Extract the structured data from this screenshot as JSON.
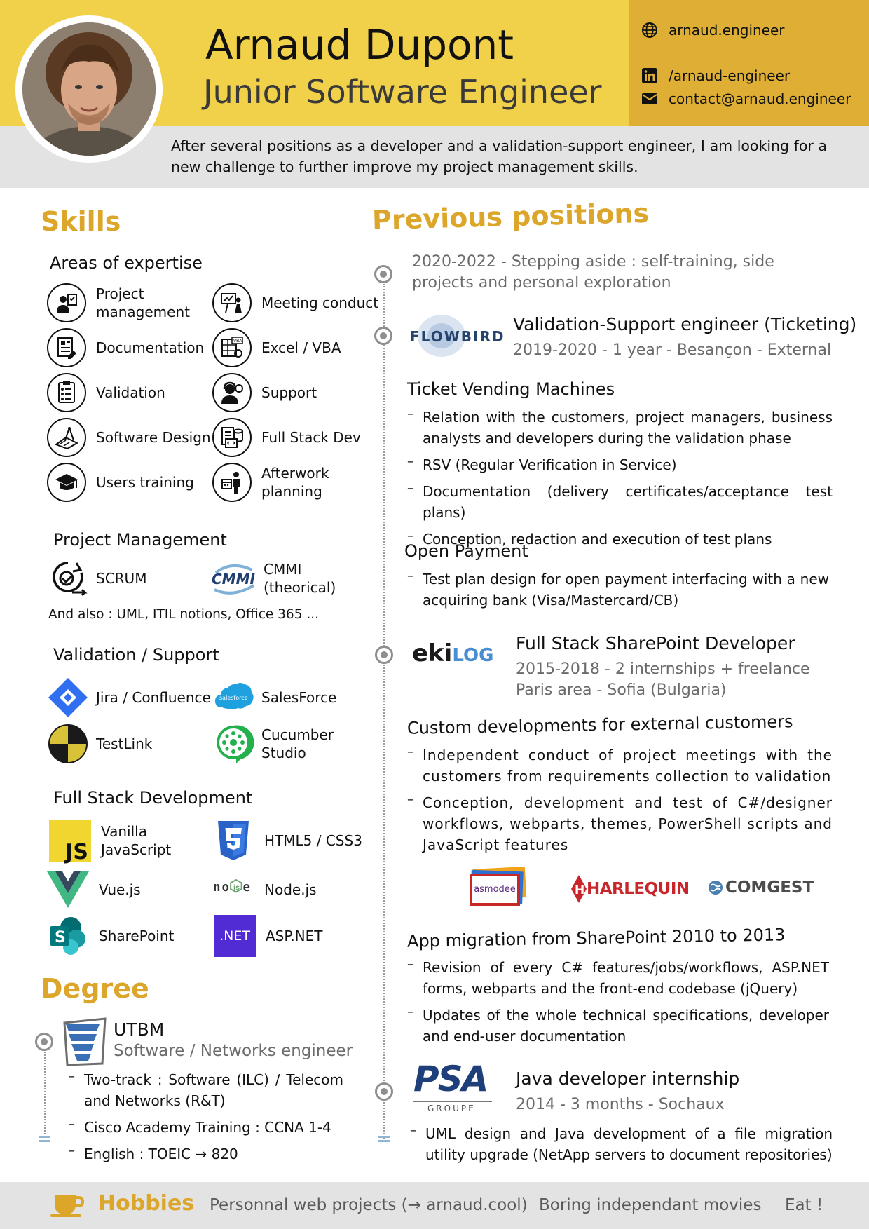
{
  "header": {
    "name": "Arnaud Dupont",
    "role": "Junior Software Engineer",
    "website": "arnaud.engineer",
    "linkedin": "/arnaud-engineer",
    "email": "contact@arnaud.engineer",
    "summary": "After several positions as a developer and a validation-support engineer, I am looking for a new challenge to further improve my project management skills."
  },
  "skills": {
    "title": "Skills",
    "expertise": {
      "title": "Areas of expertise",
      "items": [
        "Project management",
        "Meeting conduct",
        "Documentation",
        "Excel / VBA",
        "Validation",
        "Support",
        "Software Design",
        "Full Stack Dev",
        "Users training",
        "Afterwork planning"
      ]
    },
    "pm": {
      "title": "Project Management",
      "items": [
        "SCRUM",
        "CMMI (theorical)"
      ],
      "also": "And also : UML, ITIL notions, Office 365 ..."
    },
    "validation": {
      "title": "Validation / Support",
      "items": [
        "Jira / Confluence",
        "SalesForce",
        "TestLink",
        "Cucumber Studio"
      ]
    },
    "fullstack": {
      "title": "Full Stack Development",
      "items": [
        "Vanilla JavaScript",
        "HTML5 / CSS3",
        "Vue.js",
        "Node.js",
        "SharePoint",
        "ASP.NET"
      ]
    }
  },
  "degree": {
    "title": "Degree",
    "school": "UTBM",
    "program": "Software / Networks engineer",
    "bullets": [
      "Two-track : Software (ILC) / Telecom and Networks (R&T)",
      "Cisco Academy Training : CCNA 1-4",
      "English : TOEIC → 820"
    ]
  },
  "positions": {
    "title": "Previous positions",
    "gap": "2020-2022 - Stepping aside : self-training, side projects and personal exploration",
    "flowbird": {
      "logo": "FLOWBIRD",
      "title": "Validation-Support engineer (Ticketing)",
      "meta": "2019-2020 - 1 year - Besançon - External",
      "s1_title": "Ticket Vending Machines",
      "s1_bullets": [
        "Relation with the customers, project managers, business analysts and developers during the validation phase",
        "RSV (Regular Verification in Service)",
        "Documentation (delivery certificates/acceptance test plans)",
        "Conception, redaction and execution of test plans"
      ],
      "s2_title": "Open Payment",
      "s2_bullets": [
        "Test plan design for open payment interfacing with a new acquiring bank (Visa/Mastercard/CB)"
      ]
    },
    "ekilog": {
      "logo_a": "eki",
      "logo_b": "LOG",
      "title": "Full Stack SharePoint Developer",
      "meta1": "2015-2018 - 2 internships + freelance",
      "meta2": "Paris area - Sofia (Bulgaria)",
      "s1_title": "Custom developments for external customers",
      "s1_bullets": [
        "Independent conduct of project meetings with the customers from requirements collection to validation",
        "Conception, development and test of C#/designer workflows, webparts, themes, PowerShell scripts and JavaScript features"
      ],
      "clients": [
        "asmodee",
        "HARLEQUIN",
        "COMGEST"
      ],
      "s2_title": "App migration from SharePoint 2010 to 2013",
      "s2_bullets": [
        "Revision of every C# features/jobs/workflows, ASP.NET forms, webparts and the front-end codebase (jQuery)",
        "Updates of the whole technical specifications, developer and end-user documentation"
      ]
    },
    "psa": {
      "logo": "PSA",
      "logo_sub": "GROUPE",
      "title": "Java developer internship",
      "meta": "2014 - 3 months - Sochaux",
      "bullets": [
        "UML design and Java development of a file migration utility upgrade (NetApp servers to document repositories)"
      ]
    }
  },
  "hobbies": {
    "title": "Hobbies",
    "items": [
      "Personnal web projects (→ arnaud.cool)",
      "Boring independant movies",
      "Eat !"
    ]
  },
  "colors": {
    "accent": "#dca62a",
    "header_yellow": "#f2d14a",
    "contact_gold": "#deaf34",
    "band_grey": "#e3e3e3"
  }
}
